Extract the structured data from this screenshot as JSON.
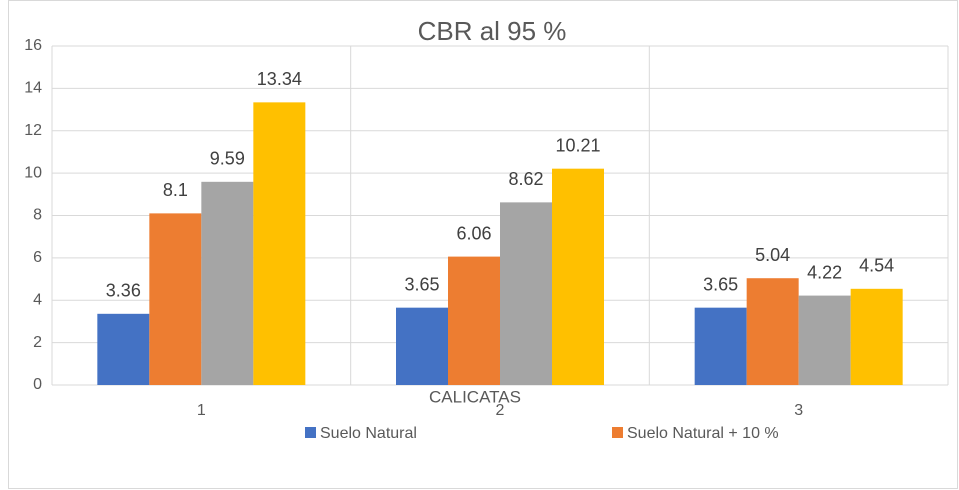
{
  "chart_data": {
    "type": "bar",
    "title": "CBR al 95 %",
    "x_label": "CALICATAS",
    "categories": [
      "1",
      "2",
      "3"
    ],
    "series": [
      {
        "name": "Suelo Natural",
        "color": "#4472c4",
        "values": [
          3.36,
          3.65,
          3.65
        ]
      },
      {
        "name": "Suelo Natural + 10 %",
        "color": "#ed7d31",
        "values": [
          8.1,
          6.06,
          5.04
        ]
      },
      {
        "color": "#a5a5a5",
        "values": [
          9.59,
          8.62,
          4.22
        ]
      },
      {
        "color": "#ffc000",
        "values": [
          13.34,
          10.21,
          4.54
        ]
      }
    ],
    "ylim": [
      0,
      16
    ],
    "yticks": [
      0,
      2,
      4,
      6,
      8,
      10,
      12,
      14,
      16
    ],
    "grid": true
  }
}
